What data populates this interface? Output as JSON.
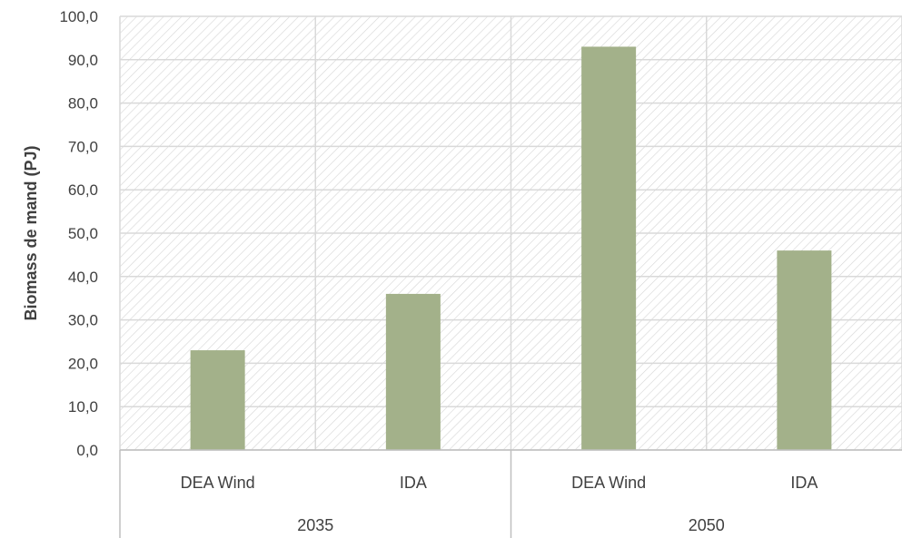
{
  "chart_data": {
    "type": "bar",
    "title": "",
    "ylabel": "Biomass de mand (PJ)",
    "xlabel": "",
    "ylim": [
      0,
      100
    ],
    "yticks": [
      "0,0",
      "10,0",
      "20,0",
      "30,0",
      "40,0",
      "50,0",
      "60,0",
      "70,0",
      "80,0",
      "90,0",
      "100,0"
    ],
    "groups": [
      {
        "label": "2035",
        "categories": [
          "DEA Wind",
          "IDA"
        ],
        "values": [
          23,
          36
        ]
      },
      {
        "label": "2050",
        "categories": [
          "DEA Wind",
          "IDA"
        ],
        "values": [
          93,
          46
        ]
      }
    ],
    "grid": true,
    "legend": "none",
    "colors": {
      "bar": "#a3b18a",
      "grid": "#d9d9d9",
      "hatch": "#d6d6d6",
      "text": "#404040"
    }
  }
}
